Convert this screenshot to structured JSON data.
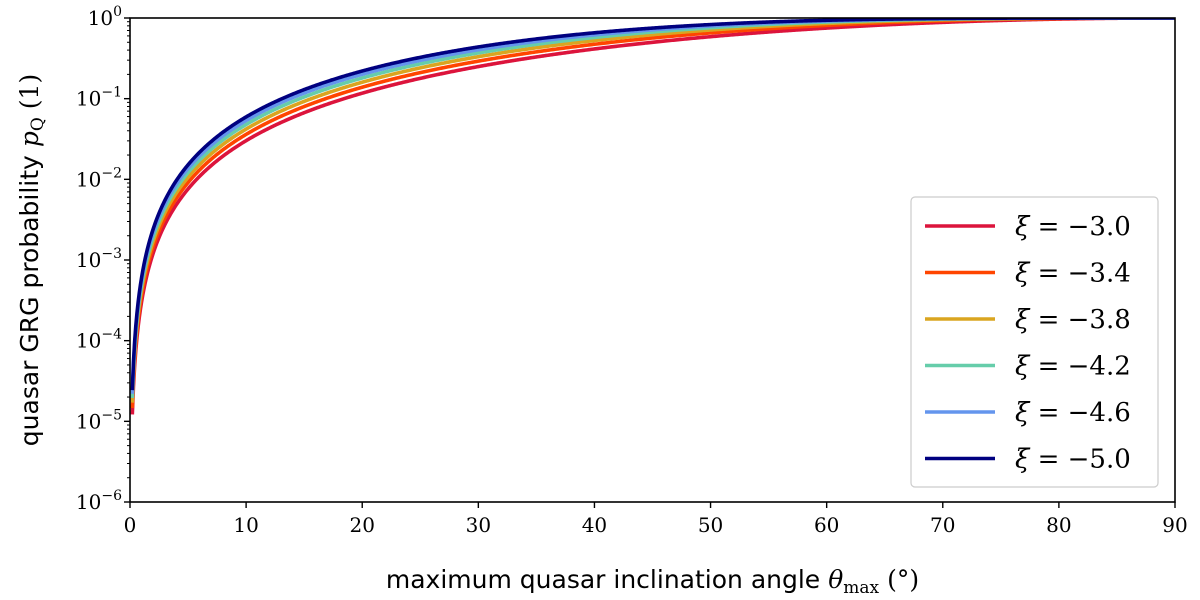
{
  "chart_data": {
    "type": "line",
    "title": "",
    "xlabel": {
      "text": "maximum quasar inclination angle",
      "symbol": "θ",
      "subscript": "max",
      "unit": "(°)"
    },
    "ylabel": {
      "text": "quasar GRG probability",
      "symbol": "p",
      "subscript": "Q",
      "unit": "(1)"
    },
    "xlim": [
      0,
      90
    ],
    "ylim_log10": [
      -6,
      0
    ],
    "yscale": "log",
    "x_ticks": [
      0,
      10,
      20,
      30,
      40,
      50,
      60,
      70,
      80,
      90
    ],
    "y_ticks": [
      {
        "base": "10",
        "exp": "−6",
        "log10": -6
      },
      {
        "base": "10",
        "exp": "−5",
        "log10": -5
      },
      {
        "base": "10",
        "exp": "−4",
        "log10": -4
      },
      {
        "base": "10",
        "exp": "−3",
        "log10": -3
      },
      {
        "base": "10",
        "exp": "−2",
        "log10": -2
      },
      {
        "base": "10",
        "exp": "−1",
        "log10": -1
      },
      {
        "base": "10",
        "exp": "0",
        "log10": 0
      }
    ],
    "legend_position": "lower-right",
    "legend_prefix": "ξ = ",
    "series": [
      {
        "name": "−3.0",
        "xi": -3.0,
        "color": "#dc143c"
      },
      {
        "name": "−3.4",
        "xi": -3.4,
        "color": "#ff4500"
      },
      {
        "name": "−3.8",
        "xi": -3.8,
        "color": "#daa520"
      },
      {
        "name": "−4.2",
        "xi": -4.2,
        "color": "#66cdaa"
      },
      {
        "name": "−4.6",
        "xi": -4.6,
        "color": "#6495ed"
      },
      {
        "name": "−5.0",
        "xi": -5.0,
        "color": "#000080"
      }
    ],
    "grid": false
  }
}
